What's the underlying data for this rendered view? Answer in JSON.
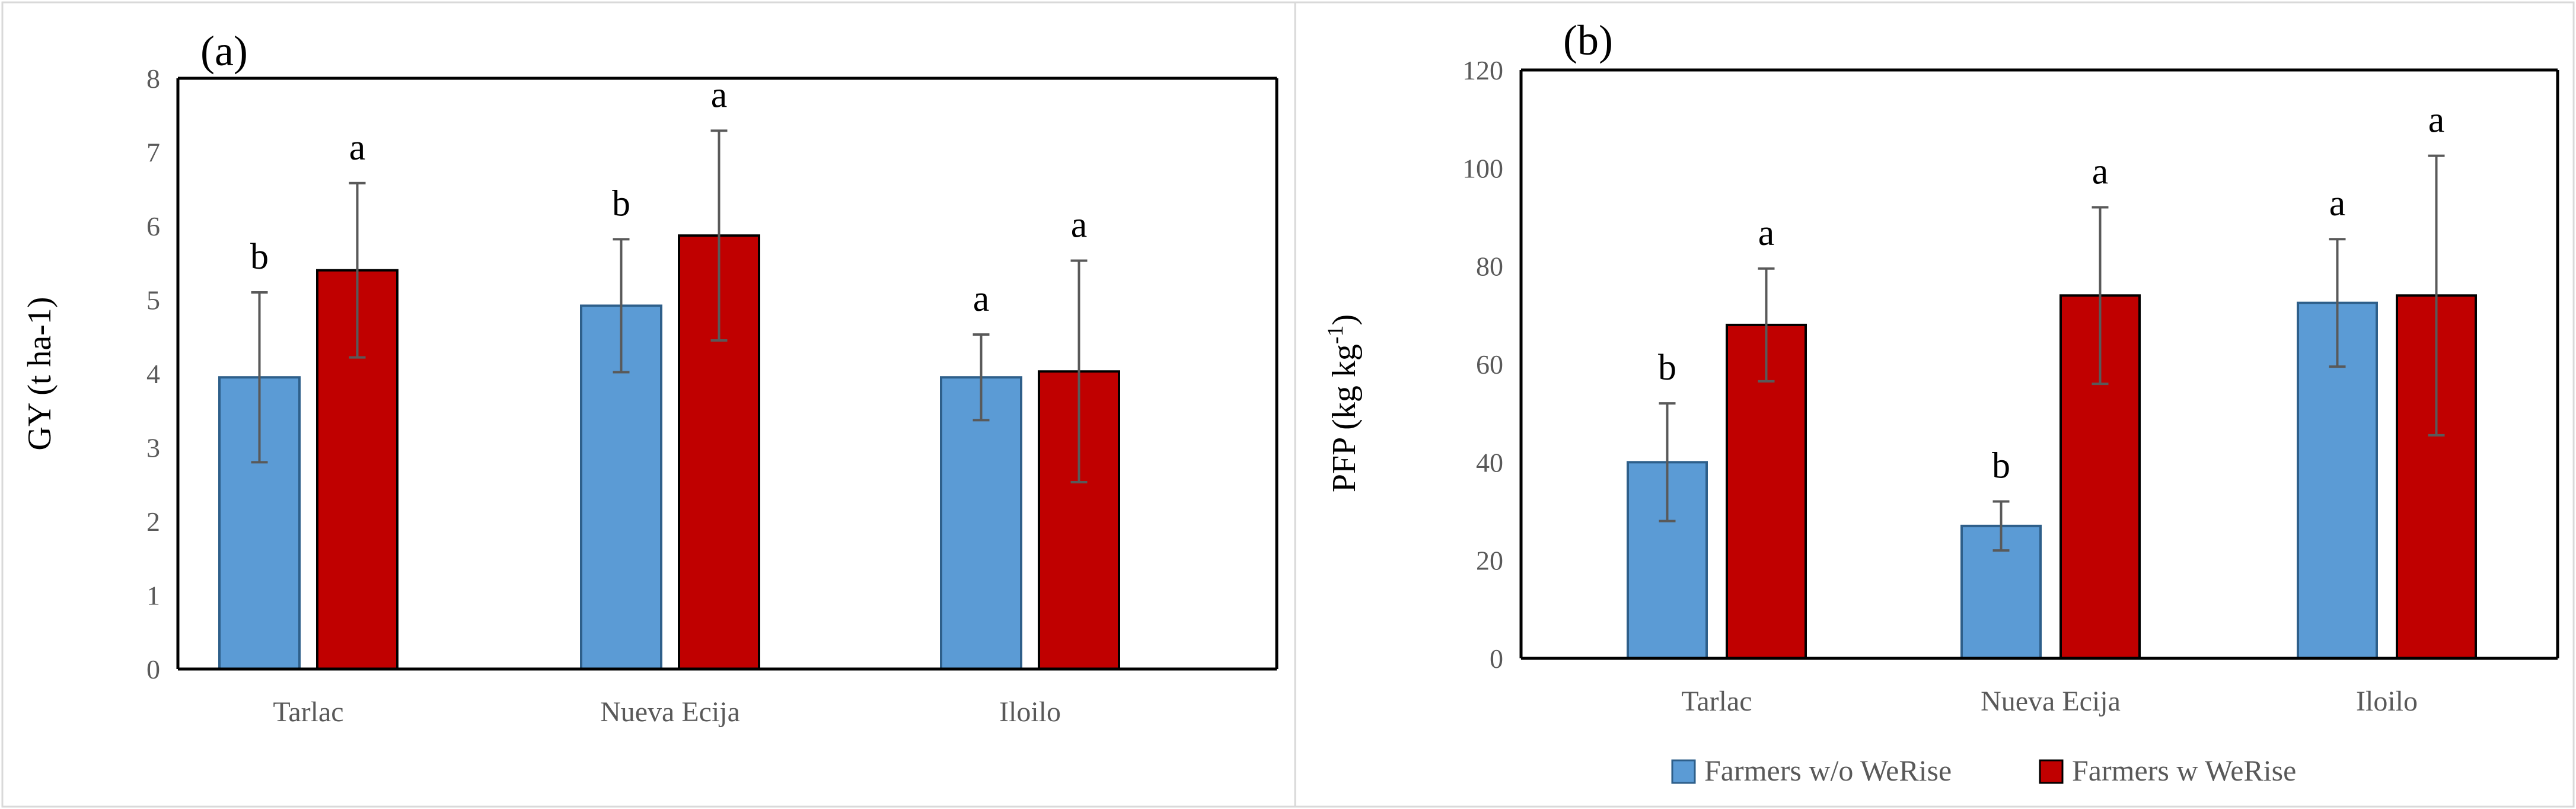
{
  "colors": {
    "without": "#5b9bd5",
    "with": "#c00000",
    "error": "#595959",
    "border": "#d9d9d9"
  },
  "legend": {
    "without_label": "Farmers w/o WeRise",
    "with_label": "Farmers w WeRise"
  },
  "chart_data": [
    {
      "panel": "(a)",
      "type": "bar",
      "ylabel": "GY (t ha-1)",
      "ylim": [
        0,
        8
      ],
      "ytick_labels": [
        "0",
        "1",
        "2",
        "3",
        "4",
        "5",
        "6",
        "7",
        "8"
      ],
      "categories": [
        "Tarlac",
        "Nueva Ecija",
        "Iloilo"
      ],
      "series": [
        {
          "name": "Farmers w/o WeRise",
          "values": [
            3.95,
            4.92,
            3.95
          ],
          "errors": [
            1.15,
            0.9,
            0.58
          ],
          "letters": [
            "b",
            "b",
            "a"
          ]
        },
        {
          "name": "Farmers w WeRise",
          "values": [
            5.4,
            5.87,
            4.03
          ],
          "errors": [
            1.18,
            1.42,
            1.5
          ],
          "letters": [
            "a",
            "a",
            "a"
          ]
        }
      ]
    },
    {
      "panel": "(b)",
      "type": "bar",
      "ylabel": "PFP (kg kg",
      "ylabel_sup": "-1",
      "ylabel_end": ")",
      "ylim": [
        0,
        120
      ],
      "ytick_labels": [
        "0",
        "20",
        "40",
        "60",
        "80",
        "100",
        "120"
      ],
      "categories": [
        "Tarlac",
        "Nueva Ecija",
        "Iloilo"
      ],
      "series": [
        {
          "name": "Farmers w/o WeRise",
          "values": [
            40,
            27,
            72.5
          ],
          "errors": [
            12,
            5,
            13
          ],
          "letters": [
            "b",
            "b",
            "a"
          ]
        },
        {
          "name": "Farmers w WeRise",
          "values": [
            68,
            74,
            74
          ],
          "errors": [
            11.5,
            18,
            28.5
          ],
          "letters": [
            "a",
            "a",
            "a"
          ]
        }
      ]
    }
  ]
}
